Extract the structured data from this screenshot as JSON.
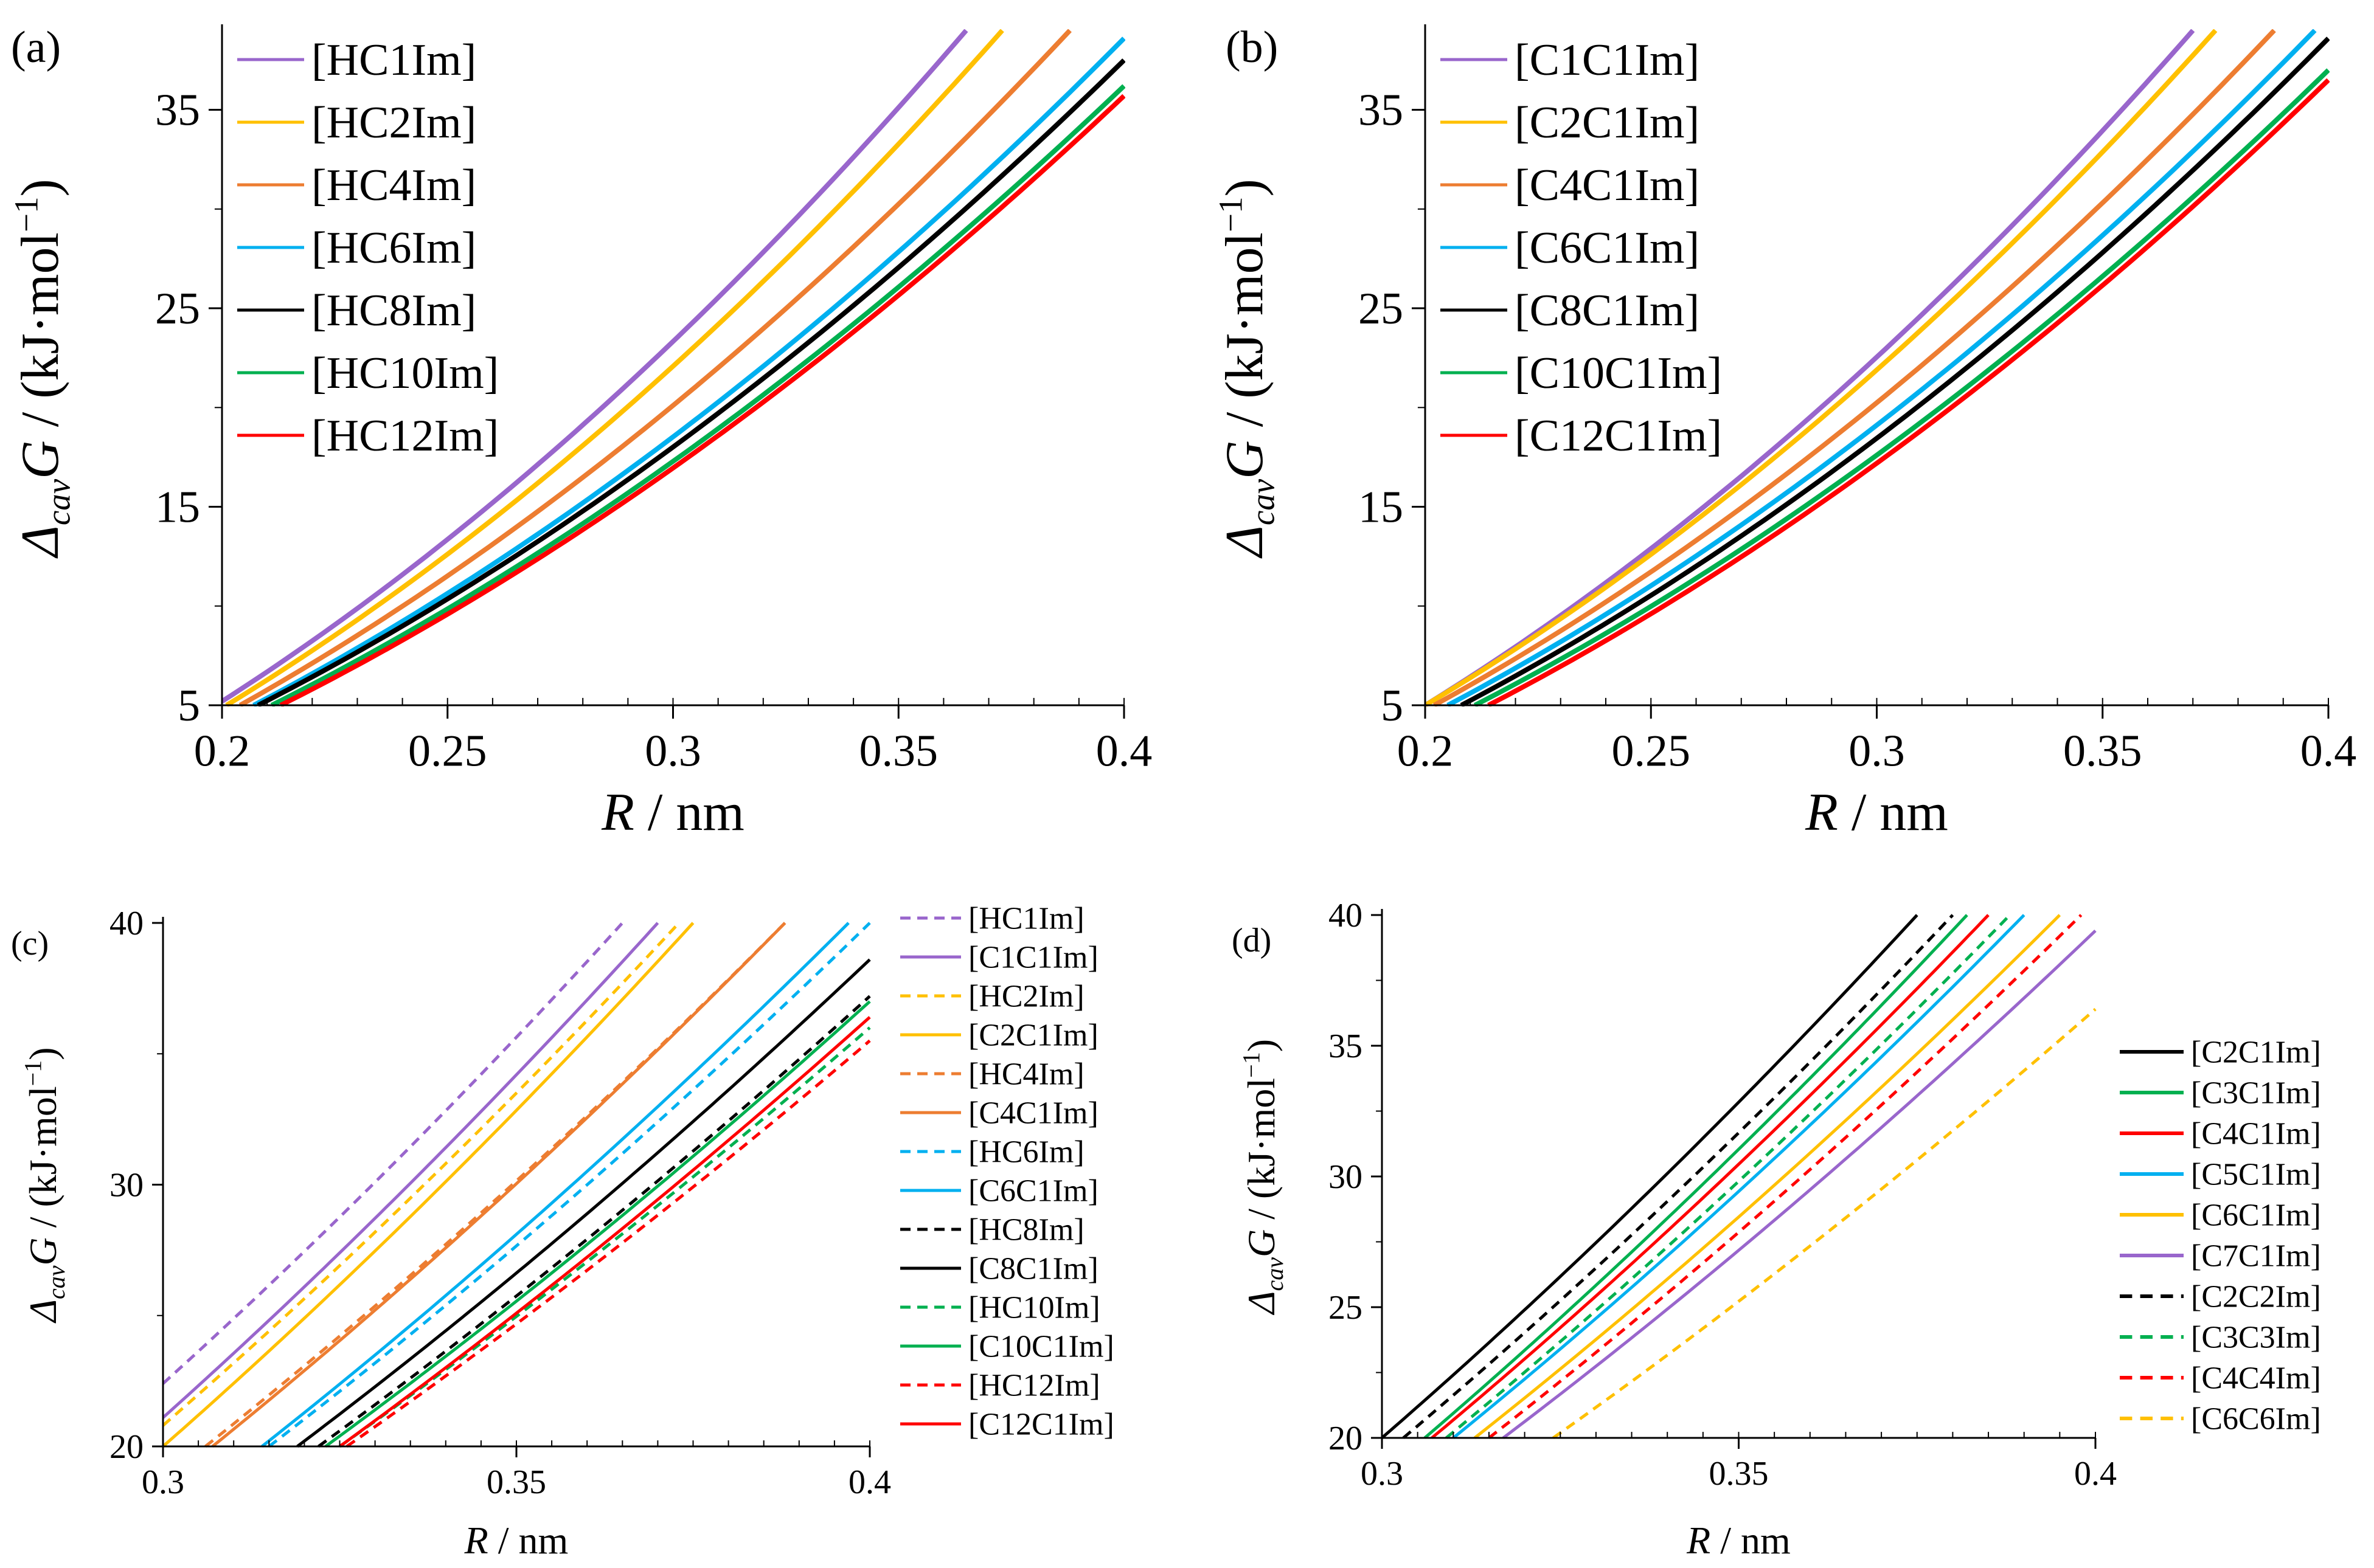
{
  "chart_data": [
    {
      "id": "a",
      "panel_label": "(a)",
      "type": "line",
      "xlabel_italic": "R",
      "xlabel_rest": " / nm",
      "ylabel": {
        "delta": "Δ",
        "sub": "cav",
        "g": "G",
        "unit": " / (kJ·mol",
        "sup": "−1",
        "close": ")"
      },
      "xlim": [
        0.2,
        0.4
      ],
      "ylim": [
        5,
        39
      ],
      "xticks": [
        0.2,
        0.25,
        0.3,
        0.35,
        0.4
      ],
      "xtick_labels": [
        "0.2",
        "0.25",
        "0.3",
        "0.35",
        "0.4"
      ],
      "yticks": [
        5,
        15,
        25,
        35
      ],
      "ytick_labels": [
        "5",
        "15",
        "25",
        "35"
      ],
      "grid": false,
      "legend_position": "top-left",
      "series": [
        {
          "name": "[HC1Im]",
          "color": "#9966CC",
          "dash": false,
          "curve": {
            "r0": 0.2,
            "y0": 5.2,
            "r1": 0.365,
            "y1": 39.0
          }
        },
        {
          "name": "[HC2Im]",
          "color": "#FFC000",
          "dash": false,
          "curve": {
            "r0": 0.201,
            "y0": 5.0,
            "r1": 0.373,
            "y1": 39.0
          }
        },
        {
          "name": "[HC4Im]",
          "color": "#ED7D31",
          "dash": false,
          "curve": {
            "r0": 0.204,
            "y0": 5.0,
            "r1": 0.388,
            "y1": 39.0
          }
        },
        {
          "name": "[HC6Im]",
          "color": "#00B0F0",
          "dash": false,
          "curve": {
            "r0": 0.207,
            "y0": 5.0,
            "r1": 0.4,
            "y1": 38.6
          }
        },
        {
          "name": "[HC8Im]",
          "color": "#000000",
          "dash": false,
          "curve": {
            "r0": 0.208,
            "y0": 5.0,
            "r1": 0.4,
            "y1": 37.5
          }
        },
        {
          "name": "[HC10Im]",
          "color": "#00B050",
          "dash": false,
          "curve": {
            "r0": 0.211,
            "y0": 5.0,
            "r1": 0.4,
            "y1": 36.2
          }
        },
        {
          "name": "[HC12Im]",
          "color": "#FF0000",
          "dash": false,
          "curve": {
            "r0": 0.213,
            "y0": 5.0,
            "r1": 0.4,
            "y1": 35.7
          }
        }
      ]
    },
    {
      "id": "b",
      "panel_label": "(b)",
      "type": "line",
      "xlabel_italic": "R",
      "xlabel_rest": " / nm",
      "ylabel": {
        "delta": "Δ",
        "sub": "cav",
        "g": "G",
        "unit": " / (kJ·mol",
        "sup": "−1",
        "close": ")"
      },
      "xlim": [
        0.2,
        0.4
      ],
      "ylim": [
        5,
        39
      ],
      "xticks": [
        0.2,
        0.25,
        0.3,
        0.35,
        0.4
      ],
      "xtick_labels": [
        "0.2",
        "0.25",
        "0.3",
        "0.35",
        "0.4"
      ],
      "yticks": [
        5,
        15,
        25,
        35
      ],
      "ytick_labels": [
        "5",
        "15",
        "25",
        "35"
      ],
      "grid": false,
      "legend_position": "top-left",
      "series": [
        {
          "name": "[C1C1Im]",
          "color": "#9966CC",
          "dash": false,
          "curve": {
            "r0": 0.2,
            "y0": 5.0,
            "r1": 0.37,
            "y1": 39.0
          }
        },
        {
          "name": "[C2C1Im]",
          "color": "#FFC000",
          "dash": false,
          "curve": {
            "r0": 0.2,
            "y0": 5.0,
            "r1": 0.375,
            "y1": 39.0
          }
        },
        {
          "name": "[C4C1Im]",
          "color": "#ED7D31",
          "dash": false,
          "curve": {
            "r0": 0.202,
            "y0": 5.0,
            "r1": 0.388,
            "y1": 39.0
          }
        },
        {
          "name": "[C6C1Im]",
          "color": "#00B0F0",
          "dash": false,
          "curve": {
            "r0": 0.205,
            "y0": 5.0,
            "r1": 0.397,
            "y1": 39.0
          }
        },
        {
          "name": "[C8C1Im]",
          "color": "#000000",
          "dash": false,
          "curve": {
            "r0": 0.208,
            "y0": 5.0,
            "r1": 0.4,
            "y1": 38.6
          }
        },
        {
          "name": "[C10C1Im]",
          "color": "#00B050",
          "dash": false,
          "curve": {
            "r0": 0.211,
            "y0": 5.0,
            "r1": 0.4,
            "y1": 37.0
          }
        },
        {
          "name": "[C12C1Im]",
          "color": "#FF0000",
          "dash": false,
          "curve": {
            "r0": 0.214,
            "y0": 5.0,
            "r1": 0.4,
            "y1": 36.5
          }
        }
      ]
    },
    {
      "id": "c",
      "panel_label": "(c)",
      "type": "line",
      "xlabel_italic": "R",
      "xlabel_rest": " / nm",
      "ylabel": {
        "delta": "Δ",
        "sub": "cav",
        "g": "G",
        "unit": " / (kJ·mol",
        "sup": "−1",
        "close": ")"
      },
      "xlim": [
        0.3,
        0.4
      ],
      "ylim": [
        20,
        40
      ],
      "xticks": [
        0.3,
        0.35,
        0.4
      ],
      "xtick_labels": [
        "0.3",
        "0.35",
        "0.4"
      ],
      "yticks": [
        20,
        30,
        40
      ],
      "ytick_labels": [
        "20",
        "30",
        "40"
      ],
      "grid": false,
      "legend_position": "right, outside",
      "series": [
        {
          "name": "[HC1Im]",
          "color": "#9966CC",
          "dash": true,
          "curve": {
            "r0": 0.3,
            "y0": 22.4,
            "r1": 0.365,
            "y1": 40.0
          }
        },
        {
          "name": "[C1C1Im]",
          "color": "#9966CC",
          "dash": false,
          "curve": {
            "r0": 0.3,
            "y0": 21.1,
            "r1": 0.37,
            "y1": 40.0
          }
        },
        {
          "name": "[HC2Im]",
          "color": "#FFC000",
          "dash": true,
          "curve": {
            "r0": 0.3,
            "y0": 20.8,
            "r1": 0.373,
            "y1": 40.0
          }
        },
        {
          "name": "[C2C1Im]",
          "color": "#FFC000",
          "dash": false,
          "curve": {
            "r0": 0.3,
            "y0": 20.0,
            "r1": 0.375,
            "y1": 40.0
          }
        },
        {
          "name": "[HC4Im]",
          "color": "#ED7D31",
          "dash": true,
          "curve": {
            "r0": 0.306,
            "y0": 20.0,
            "r1": 0.388,
            "y1": 40.0
          }
        },
        {
          "name": "[C4C1Im]",
          "color": "#ED7D31",
          "dash": false,
          "curve": {
            "r0": 0.307,
            "y0": 20.0,
            "r1": 0.388,
            "y1": 40.0
          }
        },
        {
          "name": "[HC6Im]",
          "color": "#00B0F0",
          "dash": true,
          "curve": {
            "r0": 0.315,
            "y0": 20.0,
            "r1": 0.4,
            "y1": 40.0
          }
        },
        {
          "name": "[C6C1Im]",
          "color": "#00B0F0",
          "dash": false,
          "curve": {
            "r0": 0.314,
            "y0": 20.0,
            "r1": 0.397,
            "y1": 40.0
          }
        },
        {
          "name": "[HC8Im]",
          "color": "#000000",
          "dash": true,
          "curve": {
            "r0": 0.322,
            "y0": 20.0,
            "r1": 0.4,
            "y1": 37.2
          }
        },
        {
          "name": "[C8C1Im]",
          "color": "#000000",
          "dash": false,
          "curve": {
            "r0": 0.319,
            "y0": 20.0,
            "r1": 0.4,
            "y1": 38.6
          }
        },
        {
          "name": "[HC10Im]",
          "color": "#00B050",
          "dash": true,
          "curve": {
            "r0": 0.325,
            "y0": 20.0,
            "r1": 0.4,
            "y1": 36.0
          }
        },
        {
          "name": "[C10C1Im]",
          "color": "#00B050",
          "dash": false,
          "curve": {
            "r0": 0.323,
            "y0": 20.0,
            "r1": 0.4,
            "y1": 37.0
          }
        },
        {
          "name": "[HC12Im]",
          "color": "#FF0000",
          "dash": true,
          "curve": {
            "r0": 0.326,
            "y0": 20.0,
            "r1": 0.4,
            "y1": 35.5
          }
        },
        {
          "name": "[C12C1Im]",
          "color": "#FF0000",
          "dash": false,
          "curve": {
            "r0": 0.325,
            "y0": 20.0,
            "r1": 0.4,
            "y1": 36.4
          }
        }
      ]
    },
    {
      "id": "d",
      "panel_label": "(d)",
      "type": "line",
      "xlabel_italic": "R",
      "xlabel_rest": " / nm",
      "ylabel": {
        "delta": "Δ",
        "sub": "cav",
        "g": "G",
        "unit": " / (kJ·mol",
        "sup": "−1",
        "close": ")"
      },
      "xlim": [
        0.3,
        0.4
      ],
      "ylim": [
        20,
        40
      ],
      "xticks": [
        0.3,
        0.35,
        0.4
      ],
      "xtick_labels": [
        "0.3",
        "0.35",
        "0.4"
      ],
      "yticks": [
        20,
        25,
        30,
        35,
        40
      ],
      "ytick_labels": [
        "20",
        "25",
        "30",
        "35",
        "40"
      ],
      "grid": false,
      "legend_position": "right, outside",
      "series": [
        {
          "name": "[C2C1Im]",
          "color": "#000000",
          "dash": false,
          "curve": {
            "r0": 0.3,
            "y0": 20.0,
            "r1": 0.375,
            "y1": 40.0
          }
        },
        {
          "name": "[C3C1Im]",
          "color": "#00B050",
          "dash": false,
          "curve": {
            "r0": 0.306,
            "y0": 20.0,
            "r1": 0.382,
            "y1": 40.0
          }
        },
        {
          "name": "[C4C1Im]",
          "color": "#FF0000",
          "dash": false,
          "curve": {
            "r0": 0.307,
            "y0": 20.0,
            "r1": 0.385,
            "y1": 40.0
          }
        },
        {
          "name": "[C5C1Im]",
          "color": "#00B0F0",
          "dash": false,
          "curve": {
            "r0": 0.31,
            "y0": 20.0,
            "r1": 0.39,
            "y1": 40.0
          }
        },
        {
          "name": "[C6C1Im]",
          "color": "#FFC000",
          "dash": false,
          "curve": {
            "r0": 0.313,
            "y0": 20.0,
            "r1": 0.395,
            "y1": 40.0
          }
        },
        {
          "name": "[C7C1Im]",
          "color": "#9966CC",
          "dash": false,
          "curve": {
            "r0": 0.317,
            "y0": 20.0,
            "r1": 0.4,
            "y1": 39.4
          }
        },
        {
          "name": "[C2C2Im]",
          "color": "#000000",
          "dash": true,
          "curve": {
            "r0": 0.303,
            "y0": 20.0,
            "r1": 0.38,
            "y1": 40.0
          }
        },
        {
          "name": "[C3C3Im]",
          "color": "#00B050",
          "dash": true,
          "curve": {
            "r0": 0.309,
            "y0": 20.0,
            "r1": 0.388,
            "y1": 40.0
          }
        },
        {
          "name": "[C4C4Im]",
          "color": "#FF0000",
          "dash": true,
          "curve": {
            "r0": 0.315,
            "y0": 20.0,
            "r1": 0.398,
            "y1": 40.0
          }
        },
        {
          "name": "[C6C6Im]",
          "color": "#FFC000",
          "dash": true,
          "curve": {
            "r0": 0.324,
            "y0": 20.0,
            "r1": 0.4,
            "y1": 36.4
          }
        }
      ]
    }
  ]
}
